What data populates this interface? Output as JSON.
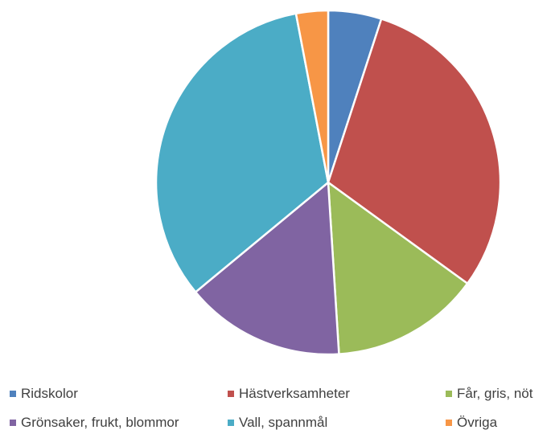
{
  "chart_data": {
    "type": "pie",
    "title": "",
    "categories": [
      "Ridskolor",
      "Hästverksamheter",
      "Får, gris, nöt",
      "Grönsaker, frukt, blommor",
      "Vall, spannmål",
      "Övriga"
    ],
    "values": [
      5,
      30,
      14,
      15,
      33,
      3
    ],
    "colors": [
      "#4f81bd",
      "#c0504d",
      "#9bbb59",
      "#8064a2",
      "#4bacc6",
      "#f79646"
    ],
    "legend_position": "bottom"
  }
}
